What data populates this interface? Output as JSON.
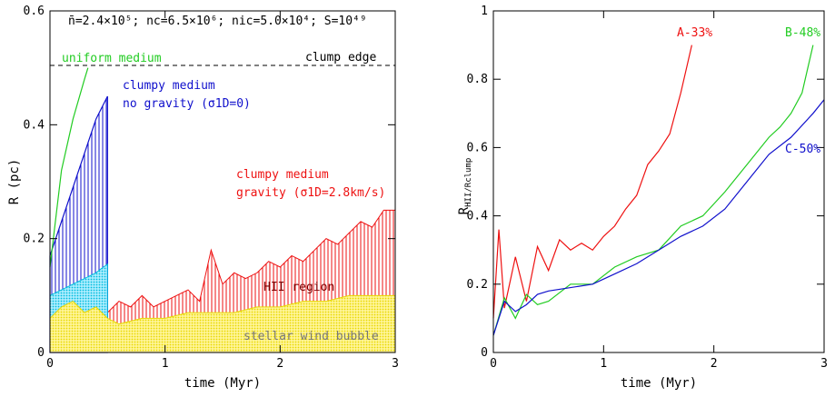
{
  "chart_data": [
    {
      "type": "area",
      "xlabel": "time (Myr)",
      "ylabel": "R (pc)",
      "xlim": [
        0,
        3
      ],
      "ylim": [
        0,
        0.6
      ],
      "xticks": [
        "0",
        "1",
        "2",
        "3"
      ],
      "yticks": [
        "0",
        "0.2",
        "0.4",
        "0.6"
      ],
      "header": "n̄=2.4×10⁵; nc=6.5×10⁶; nic=5.0×10⁴; S=10⁴⁹",
      "reference_line": {
        "label": "clump edge",
        "y": 0.5,
        "style": "dashed",
        "color": "#000000"
      },
      "annotations": {
        "uniform": "uniform medium",
        "clumpy_nograv_1": "clumpy medium",
        "clumpy_nograv_2": "no gravity (σ1D=0)",
        "clumpy_grav_1": "clumpy medium",
        "clumpy_grav_2": "gravity (σ1D=2.8km/s)",
        "hii": "HII region",
        "wind": "stellar wind bubble"
      },
      "series": [
        {
          "key": "uniform",
          "color": "#22cc22",
          "x": [
            0,
            0.1,
            0.2,
            0.3,
            0.33
          ],
          "y": [
            0.15,
            0.32,
            0.41,
            0.48,
            0.5
          ]
        },
        {
          "key": "nograv_shell",
          "color": "#1010cc",
          "x": [
            0,
            0.05,
            0.1,
            0.15,
            0.2,
            0.25,
            0.3,
            0.35,
            0.4,
            0.45,
            0.5
          ],
          "y": [
            0.17,
            0.2,
            0.23,
            0.26,
            0.29,
            0.32,
            0.35,
            0.38,
            0.41,
            0.43,
            0.45
          ]
        },
        {
          "key": "nograv_inner",
          "color": "#00bbdd",
          "x": [
            0,
            0.05,
            0.1,
            0.15,
            0.2,
            0.25,
            0.3,
            0.35,
            0.4,
            0.45,
            0.5
          ],
          "y": [
            0.1,
            0.105,
            0.11,
            0.115,
            0.12,
            0.125,
            0.13,
            0.135,
            0.14,
            0.148,
            0.155
          ]
        },
        {
          "key": "hii_region",
          "color": "#ee1111",
          "x": [
            0,
            0.05,
            0.1,
            0.2,
            0.3,
            0.4,
            0.5,
            0.6,
            0.7,
            0.8,
            0.9,
            1.0,
            1.1,
            1.2,
            1.3,
            1.4,
            1.5,
            1.6,
            1.7,
            1.8,
            1.9,
            2.0,
            2.1,
            2.2,
            2.3,
            2.4,
            2.5,
            2.6,
            2.7,
            2.8,
            2.9,
            3.0
          ],
          "y": [
            0.12,
            0.18,
            0.1,
            0.13,
            0.15,
            0.1,
            0.07,
            0.09,
            0.08,
            0.1,
            0.08,
            0.09,
            0.1,
            0.11,
            0.09,
            0.18,
            0.12,
            0.14,
            0.13,
            0.14,
            0.16,
            0.15,
            0.17,
            0.16,
            0.18,
            0.2,
            0.19,
            0.21,
            0.23,
            0.22,
            0.25,
            0.25
          ]
        },
        {
          "key": "wind_bubble",
          "color": "#e8d800",
          "x": [
            0,
            0.1,
            0.2,
            0.3,
            0.4,
            0.5,
            0.6,
            0.8,
            1.0,
            1.2,
            1.4,
            1.6,
            1.8,
            2.0,
            2.2,
            2.4,
            2.6,
            2.8,
            3.0
          ],
          "y": [
            0.06,
            0.08,
            0.09,
            0.07,
            0.08,
            0.06,
            0.05,
            0.06,
            0.06,
            0.07,
            0.07,
            0.07,
            0.08,
            0.08,
            0.09,
            0.09,
            0.1,
            0.1,
            0.1
          ]
        }
      ]
    },
    {
      "type": "line",
      "xlabel": "time (Myr)",
      "ylabel": "RHII/Rclump",
      "xlim": [
        0,
        3
      ],
      "ylim": [
        0,
        1
      ],
      "xticks": [
        "0",
        "1",
        "2",
        "3"
      ],
      "yticks": [
        "0",
        "0.2",
        "0.4",
        "0.6",
        "0.8",
        "1"
      ],
      "series": [
        {
          "name": "A-33%",
          "color": "#ee1111",
          "x": [
            0,
            0.05,
            0.1,
            0.2,
            0.3,
            0.4,
            0.5,
            0.6,
            0.7,
            0.8,
            0.9,
            1.0,
            1.1,
            1.2,
            1.3,
            1.4,
            1.5,
            1.6,
            1.7,
            1.8
          ],
          "y": [
            0.1,
            0.36,
            0.13,
            0.28,
            0.15,
            0.31,
            0.24,
            0.33,
            0.3,
            0.32,
            0.3,
            0.34,
            0.37,
            0.42,
            0.46,
            0.55,
            0.59,
            0.64,
            0.76,
            0.9
          ]
        },
        {
          "name": "B-48%",
          "color": "#22cc22",
          "x": [
            0,
            0.1,
            0.2,
            0.3,
            0.4,
            0.5,
            0.7,
            0.9,
            1.1,
            1.3,
            1.5,
            1.7,
            1.9,
            2.1,
            2.3,
            2.5,
            2.6,
            2.7,
            2.8,
            2.9
          ],
          "y": [
            0.05,
            0.16,
            0.1,
            0.17,
            0.14,
            0.15,
            0.2,
            0.2,
            0.25,
            0.28,
            0.3,
            0.37,
            0.4,
            0.47,
            0.55,
            0.63,
            0.66,
            0.7,
            0.76,
            0.9
          ]
        },
        {
          "name": "C-50%",
          "color": "#1010cc",
          "x": [
            0,
            0.1,
            0.2,
            0.3,
            0.4,
            0.5,
            0.7,
            0.9,
            1.1,
            1.3,
            1.5,
            1.7,
            1.9,
            2.1,
            2.3,
            2.5,
            2.7,
            2.9,
            3.0
          ],
          "y": [
            0.05,
            0.15,
            0.12,
            0.14,
            0.17,
            0.18,
            0.19,
            0.2,
            0.23,
            0.26,
            0.3,
            0.34,
            0.37,
            0.42,
            0.5,
            0.58,
            0.63,
            0.7,
            0.74
          ]
        }
      ]
    }
  ]
}
